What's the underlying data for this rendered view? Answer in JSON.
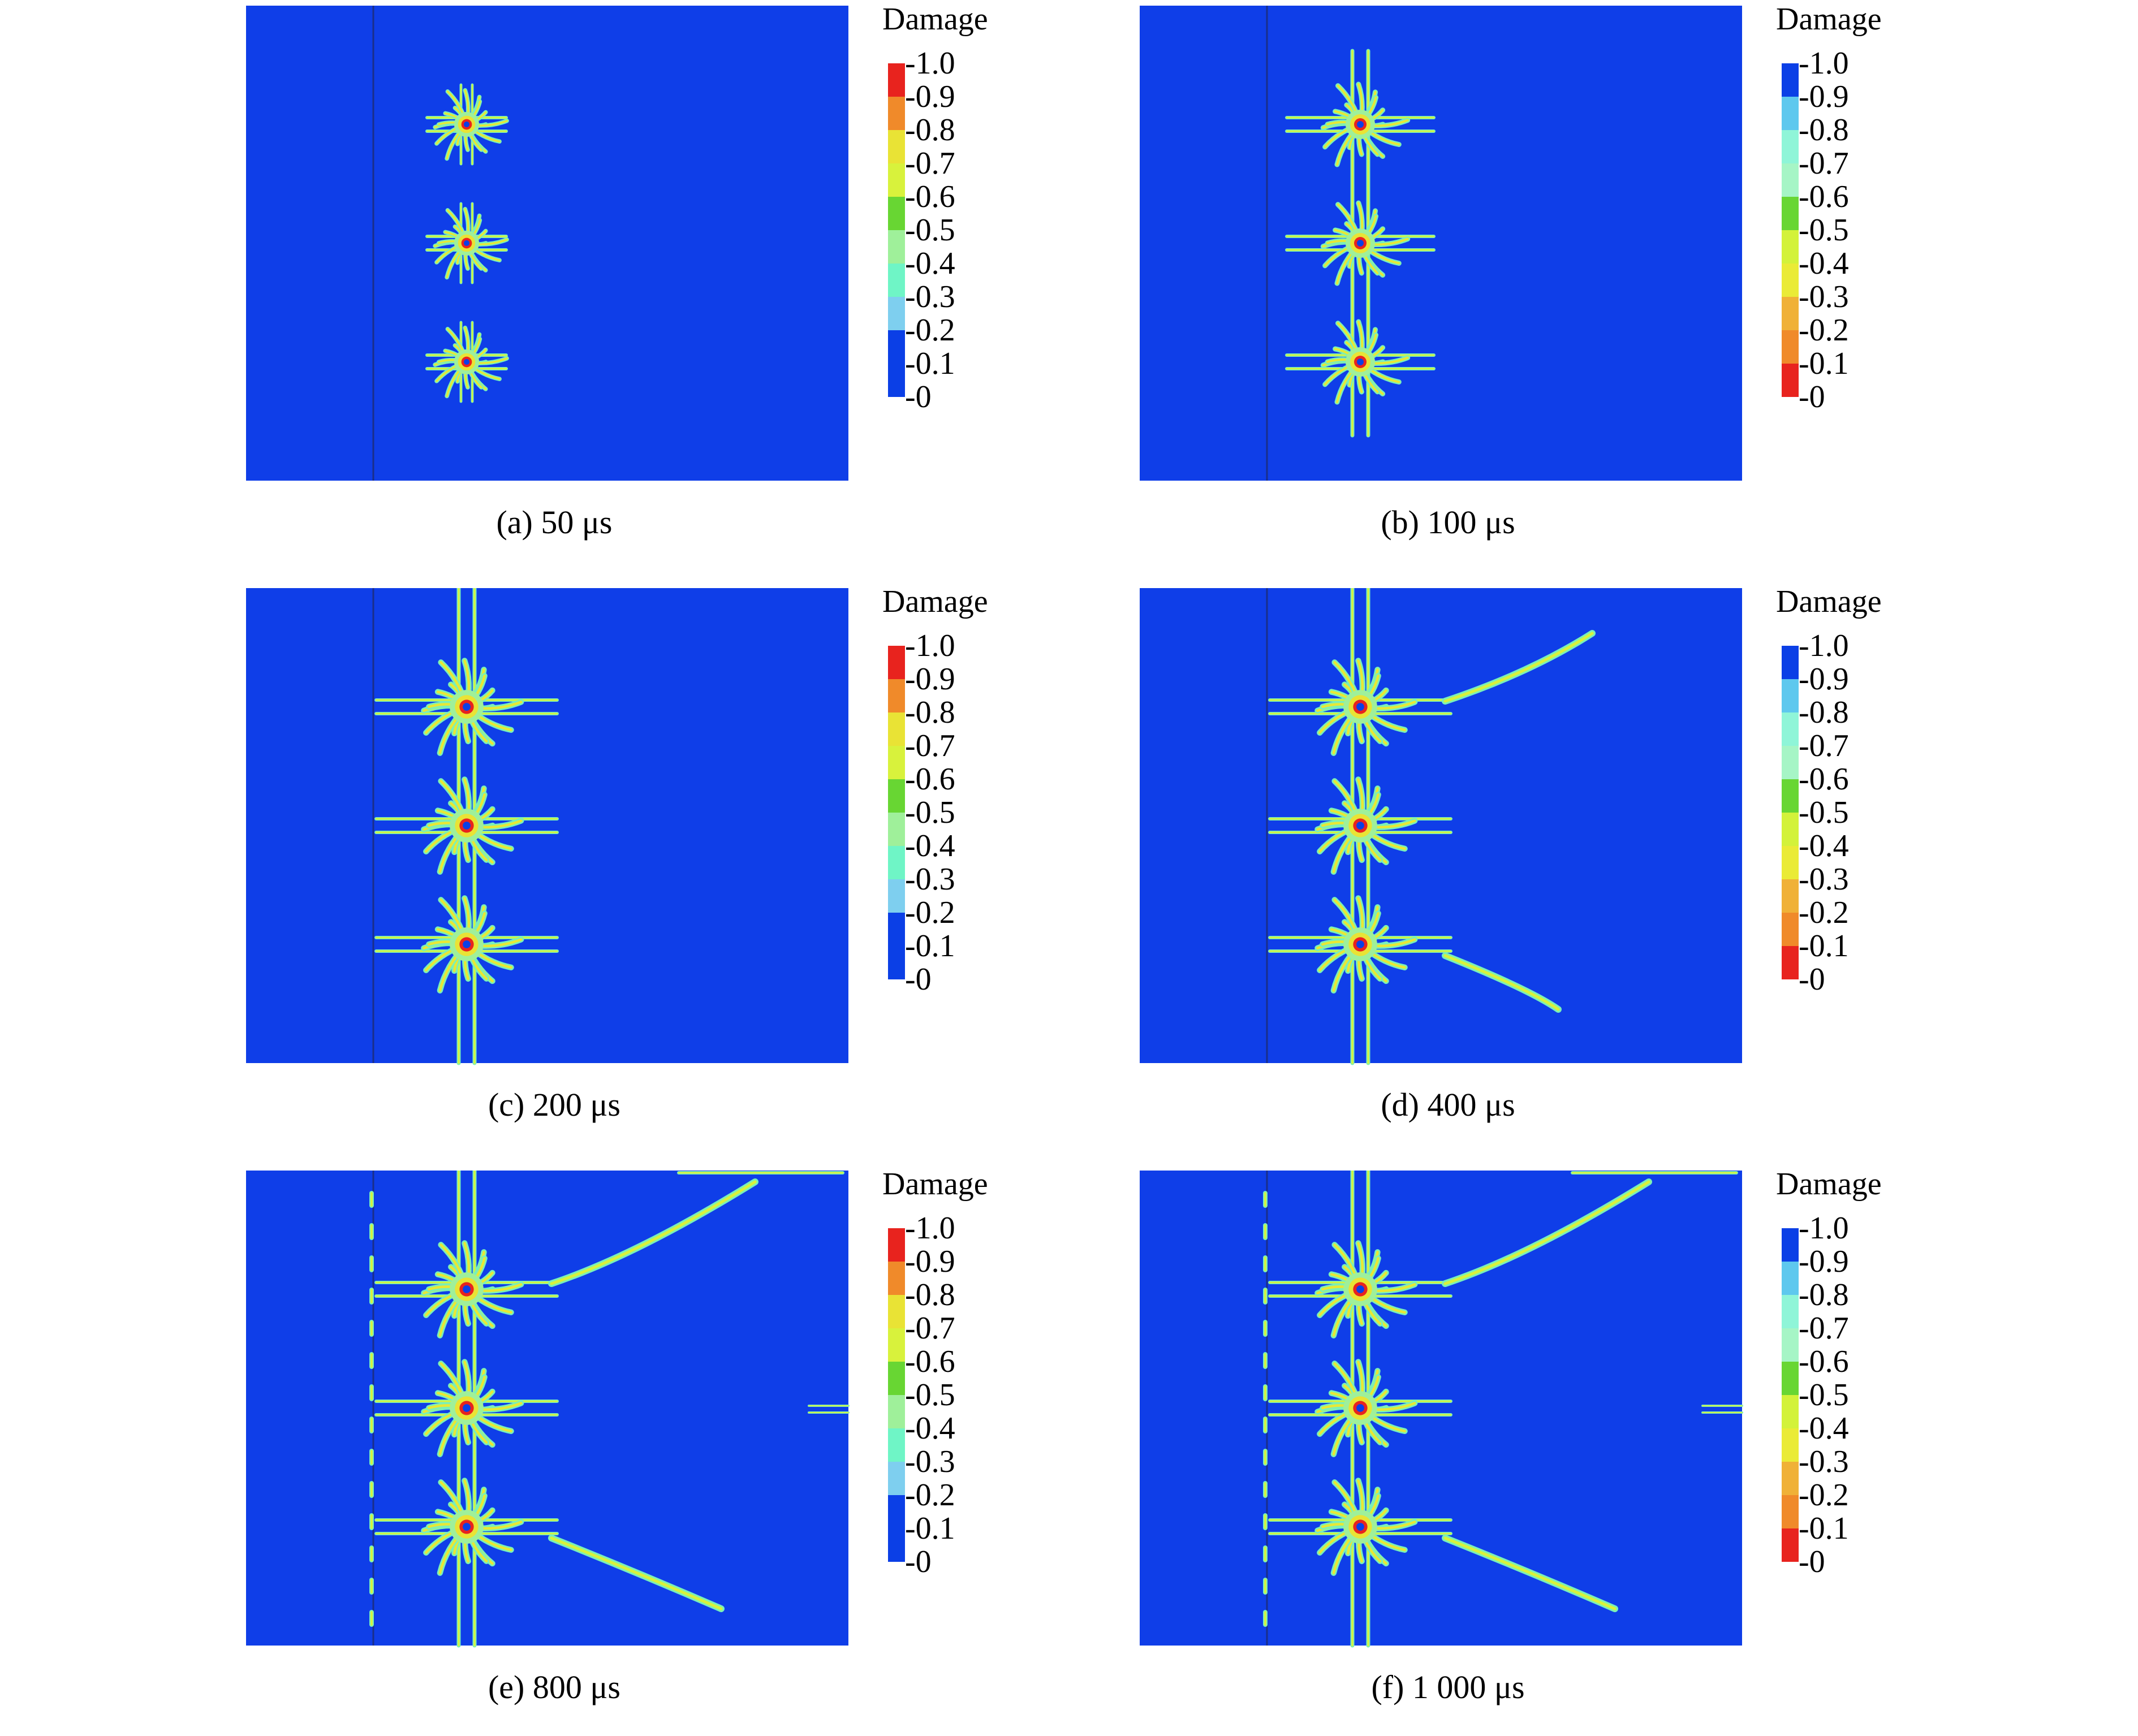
{
  "legend_title": "Damage",
  "legend_ticks": [
    "1.0",
    "0.9",
    "0.8",
    "0.7",
    "0.6",
    "0.5",
    "0.4",
    "0.3",
    "0.2",
    "0.1",
    "0"
  ],
  "colors": {
    "background_field": "#0f3ee8",
    "normal_scale": [
      "#e8231e",
      "#f08a2a",
      "#e9e335",
      "#d8f23c",
      "#68d633",
      "#9ff09a",
      "#6ff5c6",
      "#7ecfef",
      "#0b3fe6",
      "#0b3fe6"
    ],
    "reversed_scale": [
      "#0b3fe6",
      "#5ec8ee",
      "#8ff5d8",
      "#a6f5c6",
      "#68d633",
      "#d3f23a",
      "#eaeb36",
      "#f0b137",
      "#f08a2a",
      "#e8231e"
    ]
  },
  "panels": [
    {
      "caption": "(a) 50 μs",
      "stage": 1,
      "legend_reversed": false
    },
    {
      "caption": "(b) 100 μs",
      "stage": 2,
      "legend_reversed": true
    },
    {
      "caption": "(c) 200 μs",
      "stage": 3,
      "legend_reversed": false
    },
    {
      "caption": "(d) 400 μs",
      "stage": 4,
      "legend_reversed": true
    },
    {
      "caption": "(e) 800 μs",
      "stage": 5,
      "legend_reversed": false
    },
    {
      "caption": "(f) 1 000 μs",
      "stage": 6,
      "legend_reversed": true
    }
  ]
}
